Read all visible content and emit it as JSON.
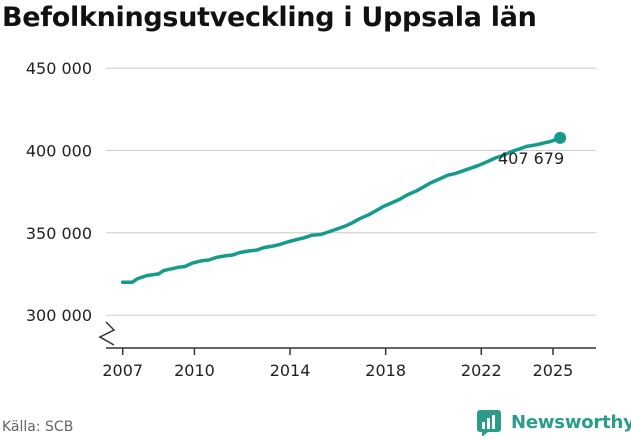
{
  "title": "Befolkningsutveckling i Uppsala län",
  "source": "Källa: SCB",
  "brand": {
    "name": "Newsworthy",
    "icon": "newsworthy-logo-icon"
  },
  "colors": {
    "line": "#159a8c",
    "grid": "#cccccc",
    "text": "#222222",
    "axis": "#333333"
  },
  "chart_data": {
    "type": "line",
    "xlim": [
      2006.3,
      2026.8
    ],
    "ylim": [
      280000,
      455000
    ],
    "axis_break": true,
    "y_ticks": [
      300000,
      350000,
      400000,
      450000
    ],
    "y_tick_labels": [
      "300 000",
      "350 000",
      "400 000",
      "450 000"
    ],
    "x_ticks": [
      2007,
      2010,
      2014,
      2018,
      2022,
      2025
    ],
    "x_tick_labels": [
      "2007",
      "2010",
      "2014",
      "2018",
      "2022",
      "2025"
    ],
    "end_label": "407 679",
    "series": [
      {
        "x": [
          2007.0,
          2007.4,
          2007.6,
          2008.0,
          2008.5,
          2008.7,
          2009.3,
          2009.6,
          2009.9,
          2010.3,
          2010.6,
          2010.9,
          2011.3,
          2011.6,
          2011.9,
          2012.3,
          2012.6,
          2012.9,
          2013.3,
          2013.6,
          2013.9,
          2014.3,
          2014.6,
          2014.9,
          2015.3,
          2015.6,
          2015.9,
          2016.3,
          2016.6,
          2016.9,
          2017.3,
          2017.6,
          2017.9,
          2018.3,
          2018.6,
          2018.9,
          2019.3,
          2019.6,
          2019.9,
          2020.3,
          2020.6,
          2020.9,
          2021.3,
          2021.6,
          2021.9,
          2022.3,
          2022.6,
          2022.9,
          2023.3,
          2023.6,
          2023.9,
          2024.3,
          2024.6,
          2024.9,
          2025.3
        ],
        "values": [
          320000,
          320000,
          322000,
          324000,
          325000,
          327000,
          329000,
          329500,
          331500,
          333000,
          333500,
          335000,
          336000,
          336500,
          338000,
          339000,
          339500,
          341000,
          342000,
          343000,
          344500,
          346000,
          347000,
          348500,
          349000,
          350500,
          352000,
          354000,
          356000,
          358500,
          361000,
          363500,
          366000,
          368500,
          370500,
          373000,
          375500,
          378000,
          380500,
          383000,
          385000,
          386000,
          388000,
          389500,
          391000,
          393500,
          395500,
          397000,
          399500,
          401000,
          402500,
          403500,
          404500,
          405500,
          407679
        ]
      }
    ]
  }
}
